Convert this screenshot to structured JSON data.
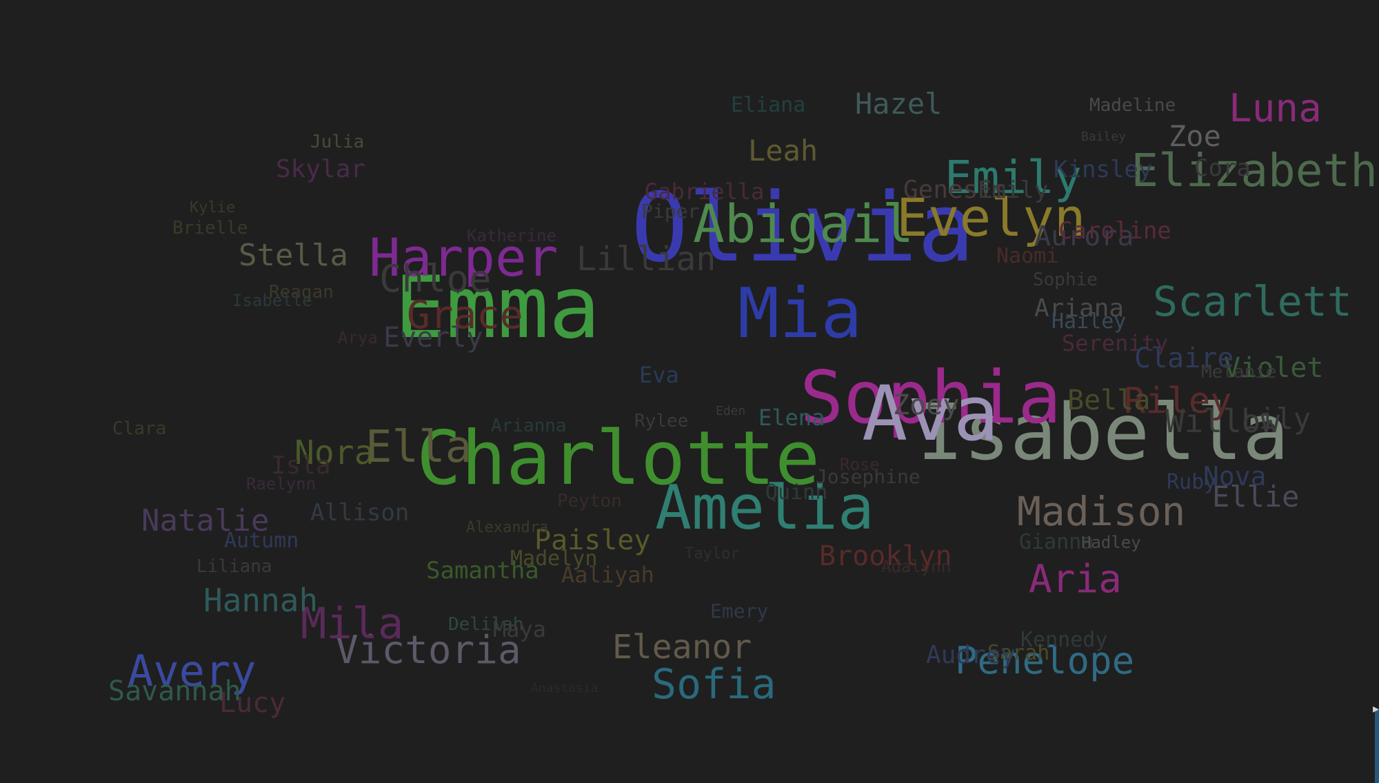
{
  "canvas": {
    "background": "#1f1f1f"
  },
  "words": [
    {
      "text": "Olivia",
      "color": "#3a3ab0"
    },
    {
      "text": "Emma",
      "color": "#3f9b3f"
    },
    {
      "text": "Charlotte",
      "color": "#3f8f2f"
    },
    {
      "text": "Isabella",
      "color": "#7a887a"
    },
    {
      "text": "Sophia",
      "color": "#9b2a8c"
    },
    {
      "text": "Ava",
      "color": "#9c92b6"
    },
    {
      "text": "Amelia",
      "color": "#2f7f72"
    },
    {
      "text": "Mia",
      "color": "#2e3ca8"
    },
    {
      "text": "Harper",
      "color": "#7e2a92"
    },
    {
      "text": "Abigail",
      "color": "#4e8a4e"
    },
    {
      "text": "Evelyn",
      "color": "#8a7a2a"
    },
    {
      "text": "Emily",
      "color": "#2c7b6e"
    },
    {
      "text": "Elizabeth",
      "color": "#4e6a4e"
    },
    {
      "text": "Scarlett",
      "color": "#2f6b5f"
    },
    {
      "text": "Madison",
      "color": "#6b6058"
    },
    {
      "text": "Sofia",
      "color": "#2a6a7c"
    },
    {
      "text": "Victoria",
      "color": "#5e5868"
    },
    {
      "text": "Penelope",
      "color": "#2f6b84"
    },
    {
      "text": "Avery",
      "color": "#3a4aa0"
    },
    {
      "text": "Eleanor",
      "color": "#625a4a"
    },
    {
      "text": "Mila",
      "color": "#5a2a5a"
    },
    {
      "text": "Aria",
      "color": "#8a2a7a"
    },
    {
      "text": "Luna",
      "color": "#8a2a7a"
    },
    {
      "text": "Hazel",
      "color": "#3f5a5a"
    },
    {
      "text": "Leah",
      "color": "#5e5a30"
    },
    {
      "text": "Zoe",
      "color": "#5e5e5e"
    },
    {
      "text": "Stella",
      "color": "#5a5a48"
    },
    {
      "text": "Chloe",
      "color": "#3a3a3a"
    },
    {
      "text": "Grace",
      "color": "#5a2a2a"
    },
    {
      "text": "Lillian",
      "color": "#3a3a3a"
    },
    {
      "text": "Nora",
      "color": "#4a5a2a"
    },
    {
      "text": "Ella",
      "color": "#5a5a3a"
    },
    {
      "text": "Natalie",
      "color": "#4a3a5a"
    },
    {
      "text": "Hannah",
      "color": "#2f5a5a"
    },
    {
      "text": "Samantha",
      "color": "#3a5a2a"
    },
    {
      "text": "Paisley",
      "color": "#5a5a2a"
    },
    {
      "text": "Brooklyn",
      "color": "#5a2a2a"
    },
    {
      "text": "Ellie",
      "color": "#4a4a58"
    },
    {
      "text": "Violet",
      "color": "#3a5a3a"
    },
    {
      "text": "Riley",
      "color": "#5a2a2a"
    },
    {
      "text": "Bella",
      "color": "#4a4a2a"
    },
    {
      "text": "Zoey",
      "color": "#4a4a4a"
    },
    {
      "text": "Savannah",
      "color": "#2f5a4a"
    },
    {
      "text": "Lucy",
      "color": "#4a2a3a"
    },
    {
      "text": "Allison",
      "color": "#333a44"
    },
    {
      "text": "Skylar",
      "color": "#4a2a4a"
    },
    {
      "text": "Eliana",
      "color": "#22403e"
    },
    {
      "text": "Madeline",
      "color": "#4a4a4a"
    },
    {
      "text": "Gabriella",
      "color": "#4a2a3a"
    },
    {
      "text": "Genesis",
      "color": "#4a3a3a"
    },
    {
      "text": "Aurora",
      "color": "#3a3a4a"
    },
    {
      "text": "Kinsley",
      "color": "#2f3a5a"
    },
    {
      "text": "Caroline",
      "color": "#5a2a3a"
    },
    {
      "text": "Naomi",
      "color": "#4a2a2a"
    },
    {
      "text": "Piper",
      "color": "#3a3a3a"
    },
    {
      "text": "Katherine",
      "color": "#3a2a3a"
    },
    {
      "text": "Julia",
      "color": "#4a4a3a"
    },
    {
      "text": "Kylie",
      "color": "#3a3a2a"
    },
    {
      "text": "Brielle",
      "color": "#3a3a2a"
    },
    {
      "text": "Reagan",
      "color": "#3a3a2a"
    },
    {
      "text": "Isabelle",
      "color": "#2a3a3a"
    },
    {
      "text": "Arya",
      "color": "#3a2a2a"
    },
    {
      "text": "Everly",
      "color": "#3a3a4a"
    },
    {
      "text": "Ariana",
      "color": "#4a4a4a"
    },
    {
      "text": "Hailey",
      "color": "#3a4a5a"
    },
    {
      "text": "Sophie",
      "color": "#3a3a3a"
    },
    {
      "text": "Serenity",
      "color": "#4a2a3a"
    },
    {
      "text": "Claire",
      "color": "#2f3a5a"
    },
    {
      "text": "Melanie",
      "color": "#3a3a3a"
    },
    {
      "text": "Emily",
      "color": "#3a3a3a"
    },
    {
      "text": "Eva",
      "color": "#2a3a5a"
    },
    {
      "text": "Elena",
      "color": "#2f5a5a"
    },
    {
      "text": "Rylee",
      "color": "#3a3a3a"
    },
    {
      "text": "Arianna",
      "color": "#2a3a3a"
    },
    {
      "text": "Clara",
      "color": "#3a3a2a"
    },
    {
      "text": "Raelynn",
      "color": "#3a2a3a"
    },
    {
      "text": "Isla",
      "color": "#3a2a2a"
    },
    {
      "text": "Autumn",
      "color": "#2f3a5a"
    },
    {
      "text": "Liliana",
      "color": "#3a3a3a"
    },
    {
      "text": "Alexandra",
      "color": "#3a3a2a"
    },
    {
      "text": "Peyton",
      "color": "#3a2a2a"
    },
    {
      "text": "Madelyn",
      "color": "#4a4a2a"
    },
    {
      "text": "Aaliyah",
      "color": "#4a3a2a"
    },
    {
      "text": "Taylor",
      "color": "#2f2f2f"
    },
    {
      "text": "Delilah",
      "color": "#2f4a3a"
    },
    {
      "text": "Maya",
      "color": "#3a3a3a"
    },
    {
      "text": "Josephine",
      "color": "#3a3a3a"
    },
    {
      "text": "Rose",
      "color": "#3a2a2a"
    },
    {
      "text": "Quinn",
      "color": "#2f3a3a"
    },
    {
      "text": "Gianna",
      "color": "#2f3a3a"
    },
    {
      "text": "Hadley",
      "color": "#4a4a4a"
    },
    {
      "text": "Ruby",
      "color": "#2f3a5a"
    },
    {
      "text": "Nova",
      "color": "#2f3a5a"
    },
    {
      "text": "Willow",
      "color": "#3a3a3a"
    },
    {
      "text": "Kennedy",
      "color": "#2f3a3a"
    },
    {
      "text": "Sarah",
      "color": "#4a4a2a"
    },
    {
      "text": "Audrey",
      "color": "#2f3a5a"
    },
    {
      "text": "Emery",
      "color": "#2f3a4a"
    },
    {
      "text": "Lily",
      "color": "#3a3a3a"
    },
    {
      "text": "Bailey",
      "color": "#3a3a3a"
    },
    {
      "text": "Cora",
      "color": "#3a3a3a"
    },
    {
      "text": "Eden",
      "color": "#3a3a3a"
    },
    {
      "text": "Anastasia",
      "color": "#2a2a2a"
    },
    {
      "text": "Adalynn",
      "color": "#3a2a2a"
    }
  ]
}
